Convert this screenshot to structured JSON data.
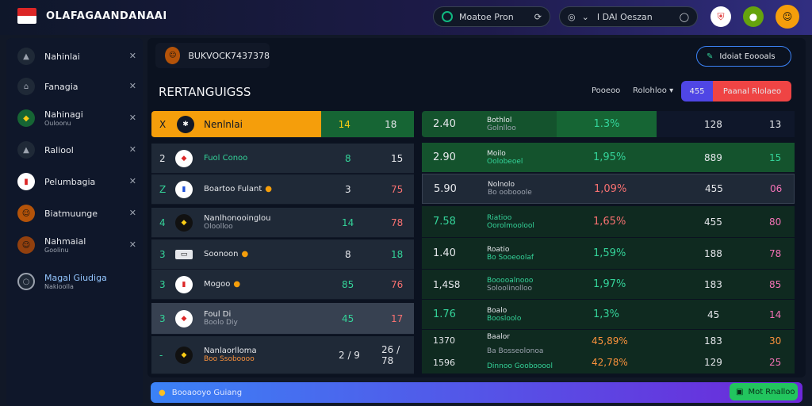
{
  "header": {
    "app_title": "OLAFAGAANDANAAI",
    "search_pill": "Moatoe Pron",
    "filter_pill": "I DAI Oeszan",
    "brand_color": "#dc2626"
  },
  "sidebar": {
    "items": [
      {
        "label": "Nahinlai",
        "sub": ""
      },
      {
        "label": "Fanagia",
        "sub": ""
      },
      {
        "label": "Nahinagi",
        "sub": "Ouloonu"
      },
      {
        "label": "Raliool",
        "sub": ""
      },
      {
        "label": "Pelumbagia",
        "sub": ""
      },
      {
        "label": "Biatmuunge",
        "sub": ""
      },
      {
        "label": "Nahmaial",
        "sub": "Goolinu"
      },
      {
        "label": "Magal Giudiga",
        "sub": "Nakioolla"
      }
    ]
  },
  "main": {
    "tab_label": "BUKVOCK7437378",
    "action_button": "Idoiat Eoooals",
    "section_title": "RERTANGUIGSS",
    "filter_a": "Pooeoo",
    "filter_b": "Rolohloo",
    "toggle_count": "455",
    "toggle_label": "Paanal Rlolaeo"
  },
  "left_table": [
    {
      "rank": "X",
      "team": "Nenlnlai",
      "sub": "",
      "a": "14",
      "b": "18",
      "b_color": "#111827"
    },
    {
      "rank": "2",
      "team": "Fuol Conoo",
      "sub": "",
      "a": "8",
      "b": "15",
      "b_color": "#e5e7eb"
    },
    {
      "rank": "Z",
      "team": "Boartoo Fulant",
      "sub": "",
      "a": "3",
      "b": "75",
      "b_color": "#f87171"
    },
    {
      "rank": "4",
      "team": "Nanlhonooinglou",
      "sub": "Oloolloo",
      "a": "14",
      "b": "78",
      "b_color": "#f87171"
    },
    {
      "rank": "3",
      "team": "Soonoon",
      "sub": "",
      "a": "8",
      "b": "18",
      "b_color": "#34d399"
    },
    {
      "rank": "3",
      "team": "Mogoo",
      "sub": "",
      "a": "85",
      "b": "76",
      "b_color": "#f87171"
    },
    {
      "rank": "3",
      "team": "Foul Di",
      "sub": "Boolo Diy",
      "a": "45",
      "b": "17",
      "b_color": "#f87171"
    },
    {
      "rank": "-",
      "team": "Nanlaorlloma",
      "sub": "Boo Ssoboooo",
      "a": "2 / 9",
      "b": "26 / 78",
      "b_color": "#e5e7eb"
    }
  ],
  "right_table": [
    {
      "odds": "2.40",
      "name": "Bothlol",
      "sub": "Golnlloo",
      "pct": "1.3%",
      "c": "128",
      "d": "13"
    },
    {
      "odds": "2.90",
      "name": "Moilo",
      "sub": "Oolobeoel",
      "pct": "1,95%",
      "c": "889",
      "d": "15"
    },
    {
      "odds": "5.90",
      "name": "Nolnolo",
      "sub": "Bo oobooole",
      "pct": "1,09%",
      "c": "455",
      "d": "06"
    },
    {
      "odds": "7.58",
      "name": "Riatioo",
      "sub": "Oorolmoolool",
      "pct": "1,65%",
      "c": "455",
      "d": "80"
    },
    {
      "odds": "1.40",
      "name": "Roatio",
      "sub": "Bo Sooeoolaf",
      "pct": "1,59%",
      "c": "188",
      "d": "78"
    },
    {
      "odds": "1,4S8",
      "name": "Booooalnooo",
      "sub": "Soloolinolloo",
      "pct": "1,97%",
      "c": "183",
      "d": "85"
    },
    {
      "odds": "1.76",
      "name": "Boalo",
      "sub": "Boosloolo",
      "pct": "1,3%",
      "c": "45",
      "d": "14"
    },
    {
      "odds": "1370",
      "name": "Baalor",
      "sub": "Ba Bosseolonoa",
      "pct": "45,89%",
      "c": "183",
      "d": "30"
    },
    {
      "odds": "1596",
      "name": "",
      "sub": "Dinnoo Goobooool",
      "pct": "42,78%",
      "c": "129",
      "d": "25"
    }
  ],
  "footer": {
    "status_text": "Booaooyo Guiang",
    "chat_button": "Mot Rnalloo"
  }
}
